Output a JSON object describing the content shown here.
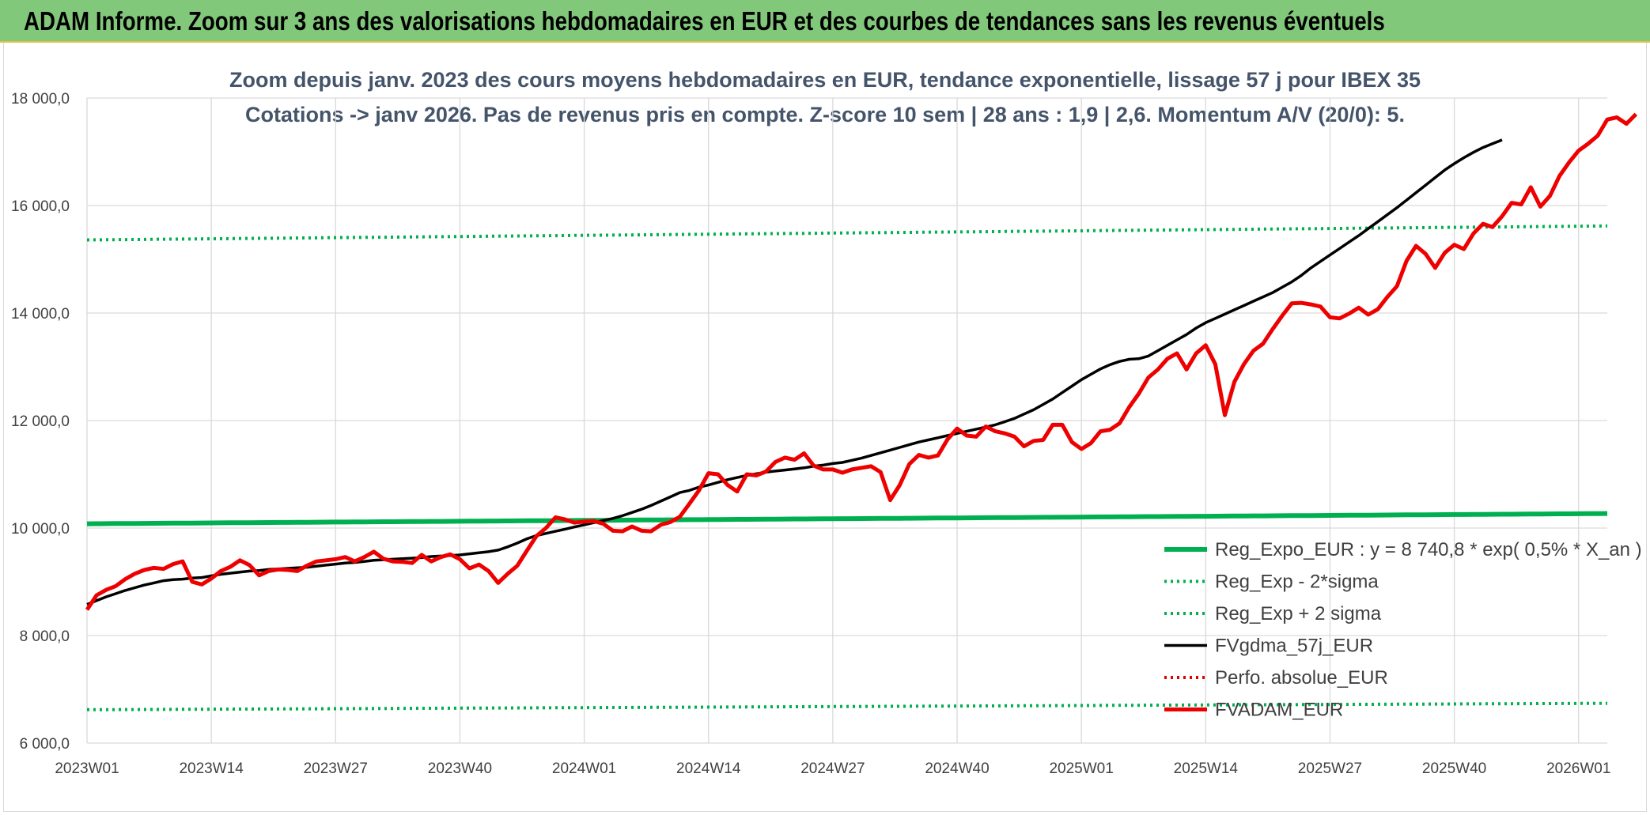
{
  "header": {
    "title": "ADAM Informe. Zoom sur 3 ans des valorisations hebdomadaires en EUR et des courbes de tendances sans les revenus éventuels"
  },
  "chart_data": {
    "type": "line",
    "title": "Zoom depuis janv. 2023 des cours moyens hebdomadaires en EUR, tendance exponentielle, lissage 57 j pour IBEX 35",
    "subtitle": "Cotations -> janv 2026. Pas de revenus pris en compte. Z-score 10 sem | 28 ans : 1,9 | 2,6. Momentum A/V (20/0): 5.",
    "xlabel": "",
    "ylabel": "",
    "ylim": [
      6000,
      18000
    ],
    "yticks": [
      "6 000,0",
      "8 000,0",
      "10 000,0",
      "12 000,0",
      "14 000,0",
      "16 000,0",
      "18 000,0"
    ],
    "x_tick_labels": [
      "2023W01",
      "2023W14",
      "2023W27",
      "2023W40",
      "2024W01",
      "2024W14",
      "2024W27",
      "2024W40",
      "2025W01",
      "2025W14",
      "2025W27",
      "2025W40",
      "2026W01"
    ],
    "grid": true,
    "legend_position": "bottom-right",
    "series": [
      {
        "name": "Reg_Expo_EUR : y = 8 740,8 * exp( 0,5% *  X_an )",
        "color": "#00b050",
        "style": "solid-thick",
        "start": 10080,
        "end": 10270
      },
      {
        "name": "Reg_Exp - 2*sigma",
        "color": "#00b050",
        "style": "dotted",
        "start": 6620,
        "end": 6740
      },
      {
        "name": "Reg_Exp + 2 sigma",
        "color": "#00b050",
        "style": "dotted",
        "start": 15360,
        "end": 15620
      },
      {
        "name": "FVgdma_57j_EUR",
        "color": "#000000",
        "style": "solid",
        "values": [
          8580,
          8650,
          8720,
          8780,
          8840,
          8890,
          8940,
          8980,
          9020,
          9040,
          9050,
          9070,
          9080,
          9110,
          9140,
          9160,
          9180,
          9200,
          9210,
          9230,
          9240,
          9250,
          9260,
          9270,
          9290,
          9310,
          9330,
          9350,
          9360,
          9380,
          9400,
          9410,
          9420,
          9430,
          9440,
          9450,
          9470,
          9480,
          9490,
          9500,
          9520,
          9540,
          9560,
          9590,
          9650,
          9720,
          9800,
          9860,
          9900,
          9940,
          9980,
          10020,
          10060,
          10100,
          10140,
          10180,
          10230,
          10290,
          10350,
          10420,
          10500,
          10580,
          10660,
          10700,
          10760,
          10800,
          10850,
          10900,
          10940,
          10980,
          11010,
          11040,
          11060,
          11080,
          11100,
          11120,
          11150,
          11170,
          11200,
          11220,
          11260,
          11300,
          11350,
          11400,
          11450,
          11500,
          11550,
          11600,
          11640,
          11680,
          11720,
          11760,
          11800,
          11840,
          11880,
          11920,
          11980,
          12040,
          12120,
          12200,
          12300,
          12400,
          12520,
          12640,
          12760,
          12860,
          12960,
          13040,
          13100,
          13140,
          13150,
          13200,
          13300,
          13400,
          13500,
          13600,
          13720,
          13820,
          13900,
          13980,
          14060,
          14140,
          14220,
          14300,
          14380,
          14480,
          14580,
          14700,
          14840,
          14960,
          15080,
          15200,
          15320,
          15440,
          15570,
          15700,
          15830,
          15960,
          16100,
          16240,
          16380,
          16520,
          16660,
          16780,
          16890,
          16990,
          17080,
          17150,
          17220
        ]
      },
      {
        "name": "Perfo. absolue_EUR",
        "color": "#e00000",
        "style": "dotted",
        "values": []
      },
      {
        "name": "FVADAM_EUR",
        "color": "#ee0000",
        "style": "solid-thick",
        "values": [
          8480,
          8750,
          8850,
          8920,
          9050,
          9150,
          9220,
          9260,
          9240,
          9330,
          9380,
          9000,
          8950,
          9060,
          9200,
          9280,
          9400,
          9310,
          9120,
          9200,
          9230,
          9220,
          9200,
          9300,
          9380,
          9400,
          9420,
          9460,
          9380,
          9460,
          9560,
          9430,
          9380,
          9370,
          9350,
          9500,
          9380,
          9460,
          9510,
          9420,
          9250,
          9320,
          9200,
          8980,
          9150,
          9300,
          9580,
          9850,
          10000,
          10200,
          10160,
          10100,
          10120,
          10130,
          10080,
          9950,
          9940,
          10030,
          9950,
          9940,
          10060,
          10110,
          10210,
          10450,
          10700,
          11020,
          11000,
          10800,
          10680,
          11000,
          10980,
          11050,
          11230,
          11310,
          11270,
          11390,
          11160,
          11090,
          11090,
          11030,
          11090,
          11120,
          11150,
          11040,
          10520,
          10800,
          11190,
          11360,
          11310,
          11350,
          11650,
          11850,
          11720,
          11700,
          11890,
          11800,
          11760,
          11700,
          11520,
          11620,
          11640,
          11920,
          11920,
          11600,
          11470,
          11580,
          11800,
          11830,
          11950,
          12250,
          12500,
          12800,
          12950,
          13150,
          13250,
          12950,
          13250,
          13400,
          13050,
          12100,
          12720,
          13050,
          13300,
          13430,
          13700,
          13950,
          14180,
          14190,
          14160,
          14120,
          13920,
          13900,
          13990,
          14100,
          13970,
          14070,
          14300,
          14500,
          14970,
          15250,
          15100,
          14840,
          15120,
          15270,
          15190,
          15480,
          15660,
          15600,
          15800,
          16050,
          16020,
          16340,
          15980,
          16180,
          16550,
          16800,
          17020,
          17150,
          17300,
          17600,
          17640,
          17520,
          17700
        ]
      }
    ]
  }
}
